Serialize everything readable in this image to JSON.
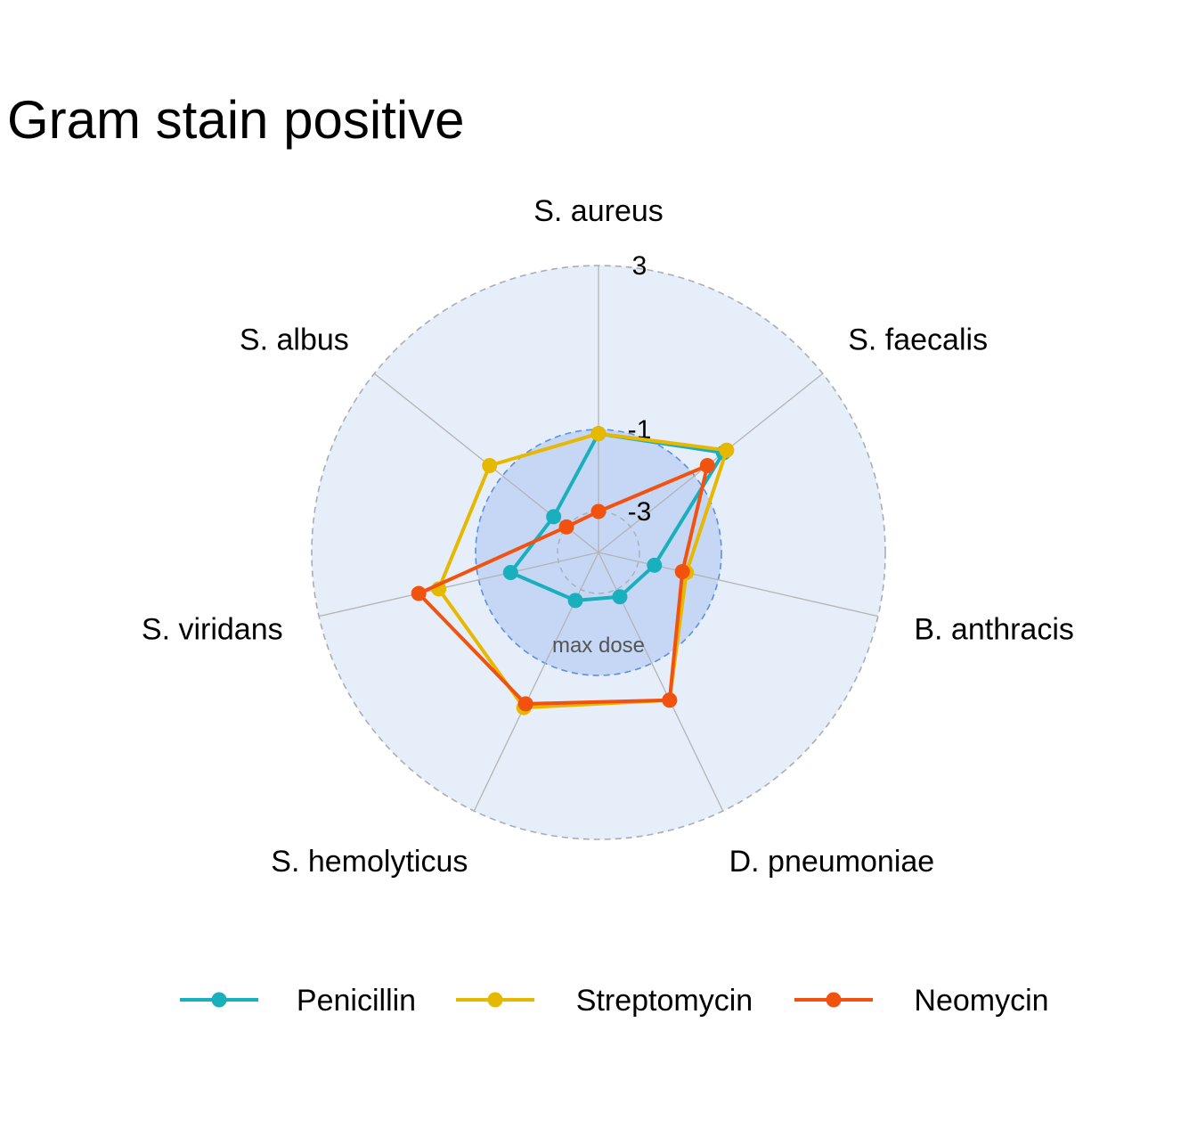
{
  "chart_data": {
    "type": "radar",
    "title": "Gram stain positive",
    "categories": [
      "S. aureus",
      "S. faecalis",
      "B. anthracis",
      "D. pneumoniae",
      "S. hemolyticus",
      "S. viridans",
      "S. albus"
    ],
    "radial_range": [
      -4,
      3
    ],
    "radial_ticks": [
      {
        "value": 3,
        "label": "3"
      },
      {
        "value": -1,
        "label": "-1"
      },
      {
        "value": -3,
        "label": "-3"
      }
    ],
    "highlight_band": {
      "from": -4,
      "to": -1,
      "label": "max dose"
    },
    "series": [
      {
        "name": "Penicillin",
        "color": "#1AAFBC",
        "values": [
          -1.1,
          -0.1,
          -2.6,
          -2.8,
          -2.7,
          -1.8,
          -2.6
        ]
      },
      {
        "name": "Streptomycin",
        "color": "#E6B800",
        "values": [
          -1.1,
          0.0,
          -1.8,
          0.0,
          0.2,
          0.0,
          -0.6
        ]
      },
      {
        "name": "Neomycin",
        "color": "#F2520F",
        "values": [
          -3.0,
          -0.6,
          -1.9,
          0.0,
          0.1,
          0.5,
          -3.0
        ]
      }
    ],
    "legend_position": "bottom"
  }
}
